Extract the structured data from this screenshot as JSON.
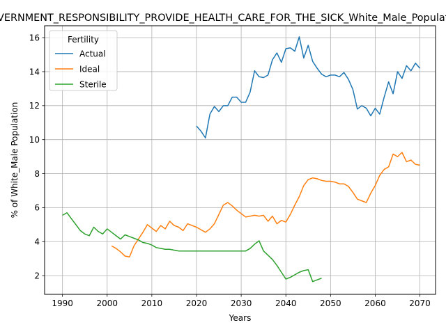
{
  "chart_data": {
    "type": "line",
    "title": "GOVERNMENT_RESPONSIBILITY_PROVIDE_HEALTH_CARE_FOR_THE_SICK_White_Male_Population",
    "xlabel": "Years",
    "ylabel": "% of White_Male Population",
    "xlim": [
      1986.0,
      2073.5
    ],
    "ylim": [
      0.9,
      16.7
    ],
    "xticks": [
      1990,
      2000,
      2010,
      2020,
      2030,
      2040,
      2050,
      2060,
      2070
    ],
    "yticks": [
      2,
      4,
      6,
      8,
      10,
      12,
      14,
      16
    ],
    "grid": true,
    "legend": {
      "title": "Fertility",
      "position": "top-left"
    },
    "series": [
      {
        "name": "Actual",
        "color": "#1f77b4",
        "x": [
          2020,
          2021,
          2022,
          2023,
          2024,
          2025,
          2026,
          2027,
          2028,
          2029,
          2030,
          2031,
          2032,
          2033,
          2034,
          2035,
          2036,
          2037,
          2038,
          2039,
          2040,
          2041,
          2042,
          2043,
          2044,
          2045,
          2046,
          2047,
          2048,
          2049,
          2050,
          2051,
          2052,
          2053,
          2054,
          2055,
          2056,
          2057,
          2058,
          2059,
          2060,
          2061,
          2062,
          2063,
          2064,
          2065,
          2066,
          2067,
          2068,
          2069,
          2070
        ],
        "y": [
          10.8,
          10.5,
          10.1,
          11.5,
          11.95,
          11.65,
          12.0,
          12.0,
          12.5,
          12.5,
          12.2,
          12.2,
          12.8,
          14.05,
          13.7,
          13.65,
          13.8,
          14.7,
          15.1,
          14.55,
          15.35,
          15.4,
          15.2,
          16.05,
          14.8,
          15.55,
          14.6,
          14.2,
          13.85,
          13.7,
          13.8,
          13.8,
          13.7,
          13.95,
          13.55,
          12.95,
          11.8,
          12.0,
          11.85,
          11.4,
          11.85,
          11.5,
          12.5,
          13.4,
          12.7,
          14.0,
          13.6,
          14.35,
          14.05,
          14.5,
          14.2
        ]
      },
      {
        "name": "Ideal",
        "color": "#ff7f0e",
        "x": [
          2001,
          2002,
          2003,
          2004,
          2005,
          2006,
          2007,
          2008,
          2009,
          2010,
          2011,
          2012,
          2013,
          2014,
          2015,
          2016,
          2017,
          2018,
          2019,
          2020,
          2021,
          2022,
          2023,
          2024,
          2025,
          2026,
          2027,
          2028,
          2029,
          2030,
          2031,
          2032,
          2033,
          2034,
          2035,
          2036,
          2037,
          2038,
          2039,
          2040,
          2041,
          2042,
          2043,
          2044,
          2045,
          2046,
          2047,
          2048,
          2049,
          2050,
          2051,
          2052,
          2053,
          2054,
          2055,
          2056,
          2057,
          2058,
          2059,
          2060,
          2061,
          2062,
          2063,
          2064,
          2065,
          2066,
          2067,
          2068,
          2069,
          2070
        ],
        "y": [
          3.75,
          3.6,
          3.4,
          3.15,
          3.1,
          3.75,
          4.15,
          4.55,
          5.0,
          4.8,
          4.6,
          4.95,
          4.75,
          5.2,
          4.95,
          4.85,
          4.65,
          5.05,
          4.95,
          4.85,
          4.7,
          4.55,
          4.75,
          5.05,
          5.6,
          6.15,
          6.3,
          6.1,
          5.85,
          5.65,
          5.45,
          5.5,
          5.55,
          5.5,
          5.55,
          5.2,
          5.5,
          5.05,
          5.25,
          5.15,
          5.6,
          6.15,
          6.65,
          7.3,
          7.65,
          7.75,
          7.7,
          7.6,
          7.55,
          7.55,
          7.5,
          7.4,
          7.4,
          7.25,
          6.9,
          6.5,
          6.4,
          6.3,
          6.85,
          7.3,
          7.9,
          8.25,
          8.4,
          9.15,
          9.0,
          9.25,
          8.7,
          8.8,
          8.55,
          8.5
        ]
      },
      {
        "name": "Sterile",
        "color": "#2ca02c",
        "x": [
          1990,
          1991,
          1992,
          1993,
          1994,
          1995,
          1996,
          1997,
          1998,
          1999,
          2000,
          2001,
          2002,
          2003,
          2004,
          2005,
          2006,
          2007,
          2008,
          2009,
          2010,
          2011,
          2012,
          2013,
          2014,
          2015,
          2016,
          2017,
          2018,
          2019,
          2020,
          2021,
          2022,
          2023,
          2024,
          2025,
          2026,
          2027,
          2028,
          2029,
          2030,
          2031,
          2032,
          2033,
          2034,
          2035,
          2036,
          2037,
          2038,
          2039,
          2040,
          2041,
          2042,
          2043,
          2044,
          2045,
          2046,
          2047,
          2048
        ],
        "y": [
          5.55,
          5.7,
          5.35,
          5.0,
          4.65,
          4.45,
          4.35,
          4.85,
          4.6,
          4.45,
          4.75,
          4.55,
          4.35,
          4.15,
          4.4,
          4.3,
          4.2,
          4.1,
          3.95,
          3.9,
          3.8,
          3.65,
          3.6,
          3.55,
          3.55,
          3.5,
          3.45,
          3.45,
          3.45,
          3.45,
          3.45,
          3.45,
          3.45,
          3.45,
          3.45,
          3.45,
          3.45,
          3.45,
          3.45,
          3.45,
          3.45,
          3.45,
          3.6,
          3.85,
          4.05,
          3.45,
          3.2,
          2.95,
          2.6,
          2.2,
          1.8,
          1.9,
          2.05,
          2.2,
          2.3,
          2.35,
          1.65,
          1.75,
          1.85
        ]
      }
    ]
  }
}
